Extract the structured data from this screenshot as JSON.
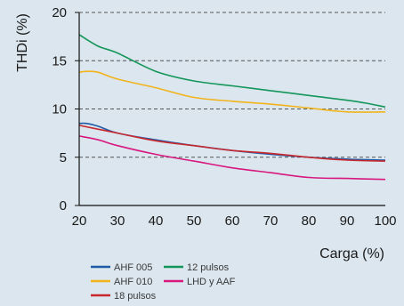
{
  "chart_data": {
    "type": "line",
    "title": "",
    "xlabel": "Carga (%)",
    "ylabel": "THDi (%)",
    "xlim": [
      20,
      100
    ],
    "ylim": [
      0,
      20
    ],
    "xticks": [
      20,
      30,
      40,
      50,
      60,
      70,
      80,
      90,
      100
    ],
    "yticks": [
      0,
      5,
      10,
      15,
      20
    ],
    "grid": "dashed-horizontal",
    "legend_position": "bottom",
    "series": [
      {
        "name": "AHF 005",
        "color": "#1f5aa6",
        "x": [
          20,
          22,
          25,
          30,
          40,
          50,
          60,
          70,
          80,
          90,
          100
        ],
        "y": [
          8.5,
          8.5,
          8.2,
          7.5,
          6.8,
          6.2,
          5.7,
          5.3,
          5.0,
          4.8,
          4.7
        ]
      },
      {
        "name": "12 pulsos",
        "color": "#14965a",
        "x": [
          20,
          25,
          30,
          40,
          50,
          60,
          70,
          80,
          90,
          95,
          100
        ],
        "y": [
          17.7,
          16.5,
          15.8,
          13.9,
          12.9,
          12.4,
          11.9,
          11.4,
          10.9,
          10.6,
          10.2
        ]
      },
      {
        "name": "AHF 010",
        "color": "#f2b41c",
        "x": [
          20,
          22,
          25,
          30,
          40,
          50,
          60,
          70,
          80,
          90,
          100
        ],
        "y": [
          13.8,
          13.9,
          13.8,
          13.1,
          12.2,
          11.2,
          10.8,
          10.5,
          10.1,
          9.7,
          9.7
        ]
      },
      {
        "name": "LHD y AAF",
        "color": "#d8177f",
        "x": [
          20,
          25,
          30,
          40,
          50,
          60,
          70,
          80,
          90,
          100
        ],
        "y": [
          7.2,
          6.8,
          6.2,
          5.3,
          4.6,
          3.9,
          3.4,
          2.9,
          2.8,
          2.7
        ]
      },
      {
        "name": "18 pulsos",
        "color": "#c8282d",
        "x": [
          20,
          25,
          30,
          40,
          50,
          60,
          70,
          80,
          90,
          100
        ],
        "y": [
          8.3,
          7.9,
          7.5,
          6.7,
          6.2,
          5.7,
          5.4,
          5.0,
          4.7,
          4.6
        ]
      }
    ]
  }
}
